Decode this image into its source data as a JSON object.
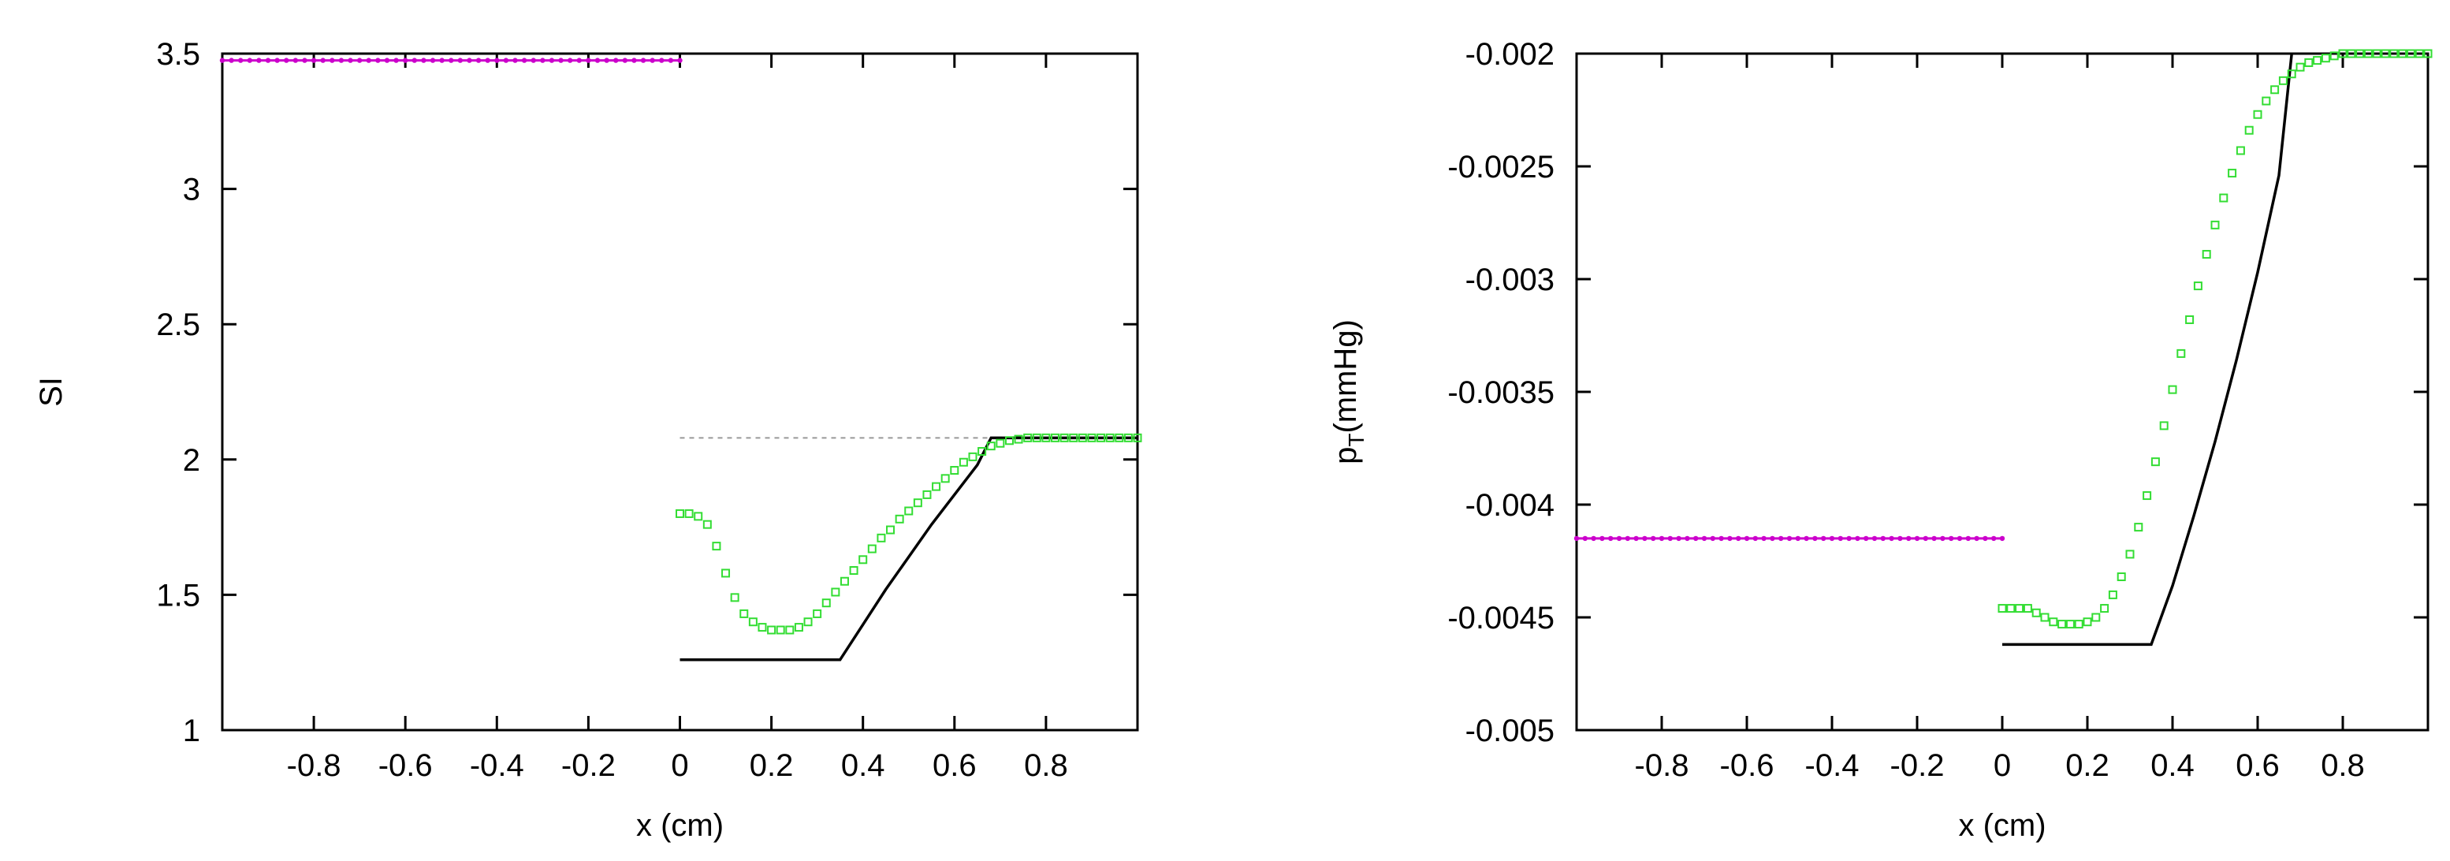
{
  "chart_data": [
    {
      "type": "line",
      "xlabel": "x (cm)",
      "ylabel": "SI",
      "xlim": [
        -1,
        1
      ],
      "ylim": [
        1,
        3.5
      ],
      "grid": false,
      "xticks": [
        -0.8,
        -0.6,
        -0.4,
        -0.2,
        0,
        0.2,
        0.4,
        0.6,
        0.8
      ],
      "xtick_labels": [
        "-0.8",
        "-0.6",
        "-0.4",
        "-0.2",
        "0",
        "0.2",
        "0.4",
        "0.6",
        "0.8"
      ],
      "yticks": [
        1,
        1.5,
        2,
        2.5,
        3,
        3.5
      ],
      "ytick_labels": [
        "1",
        "1.5",
        "2",
        "2.5",
        "3",
        "3.5"
      ],
      "series": [
        {
          "style": "magenta-points",
          "color": "#cc00cc",
          "x_range": [
            -1,
            0
          ],
          "y_constant": 3.475
        },
        {
          "style": "black-line",
          "color": "#000000",
          "x": [
            0,
            0.35,
            0.4,
            0.45,
            0.5,
            0.55,
            0.6,
            0.65,
            0.68,
            1.0
          ],
          "y": [
            1.26,
            1.26,
            1.39,
            1.52,
            1.64,
            1.76,
            1.87,
            1.98,
            2.08,
            2.08
          ]
        },
        {
          "style": "gray-dashed",
          "color": "#999999",
          "x": [
            0,
            0.68
          ],
          "y": [
            2.08,
            2.08
          ]
        },
        {
          "style": "black-dashed",
          "color": "#000000",
          "x": [
            0.68,
            1.0
          ],
          "y": [
            2.08,
            2.08
          ]
        },
        {
          "style": "green-squares",
          "color": "#33dd33",
          "x": [
            0,
            0.02,
            0.04,
            0.06,
            0.08,
            0.1,
            0.12,
            0.14,
            0.16,
            0.18,
            0.2,
            0.22,
            0.24,
            0.26,
            0.28,
            0.3,
            0.32,
            0.34,
            0.36,
            0.38,
            0.4,
            0.42,
            0.44,
            0.46,
            0.48,
            0.5,
            0.52,
            0.54,
            0.56,
            0.58,
            0.6,
            0.62,
            0.64,
            0.66,
            0.68,
            0.7,
            0.72,
            0.74,
            0.76,
            0.78,
            0.8,
            0.82,
            0.84,
            0.86,
            0.88,
            0.9,
            0.92,
            0.94,
            0.96,
            0.98,
            1.0
          ],
          "y": [
            1.8,
            1.8,
            1.79,
            1.76,
            1.68,
            1.58,
            1.49,
            1.43,
            1.4,
            1.38,
            1.37,
            1.37,
            1.37,
            1.38,
            1.4,
            1.43,
            1.47,
            1.51,
            1.55,
            1.59,
            1.63,
            1.67,
            1.71,
            1.74,
            1.78,
            1.81,
            1.84,
            1.87,
            1.9,
            1.93,
            1.96,
            1.99,
            2.01,
            2.03,
            2.05,
            2.06,
            2.07,
            2.075,
            2.08,
            2.08,
            2.08,
            2.08,
            2.08,
            2.08,
            2.08,
            2.08,
            2.08,
            2.08,
            2.08,
            2.08,
            2.08
          ]
        }
      ]
    },
    {
      "type": "line",
      "xlabel": "x (cm)",
      "ylabel": "p",
      "ylabel_subscript": "T",
      "ylabel_suffix": "(mmHg)",
      "xlim": [
        -1,
        1
      ],
      "ylim": [
        -0.005,
        -0.002
      ],
      "grid": false,
      "xticks": [
        -0.8,
        -0.6,
        -0.4,
        -0.2,
        0,
        0.2,
        0.4,
        0.6,
        0.8
      ],
      "xtick_labels": [
        "-0.8",
        "-0.6",
        "-0.4",
        "-0.2",
        "0",
        "0.2",
        "0.4",
        "0.6",
        "0.8"
      ],
      "yticks": [
        -0.005,
        -0.0045,
        -0.004,
        -0.0035,
        -0.003,
        -0.0025,
        -0.002
      ],
      "ytick_labels": [
        "-0.005",
        "-0.0045",
        "-0.004",
        "-0.0035",
        "-0.003",
        "-0.0025",
        "-0.002"
      ],
      "series": [
        {
          "style": "magenta-points",
          "color": "#cc00cc",
          "x_range": [
            -1,
            0
          ],
          "y_constant": -0.00415
        },
        {
          "style": "black-line",
          "color": "#000000",
          "x": [
            0,
            0.35,
            0.4,
            0.45,
            0.5,
            0.55,
            0.6,
            0.65,
            0.68
          ],
          "y": [
            -0.00462,
            -0.00462,
            -0.00436,
            -0.00405,
            -0.00372,
            -0.00336,
            -0.00297,
            -0.00254,
            -0.002
          ]
        },
        {
          "style": "green-squares",
          "color": "#33dd33",
          "x": [
            0,
            0.02,
            0.04,
            0.06,
            0.08,
            0.1,
            0.12,
            0.14,
            0.16,
            0.18,
            0.2,
            0.22,
            0.24,
            0.26,
            0.28,
            0.3,
            0.32,
            0.34,
            0.36,
            0.38,
            0.4,
            0.42,
            0.44,
            0.46,
            0.48,
            0.5,
            0.52,
            0.54,
            0.56,
            0.58,
            0.6,
            0.62,
            0.64,
            0.66,
            0.68,
            0.7,
            0.72,
            0.74,
            0.76,
            0.78,
            0.8,
            0.82,
            0.84,
            0.86,
            0.88,
            0.9,
            0.92,
            0.94,
            0.96,
            0.98,
            1.0
          ],
          "y": [
            -0.00446,
            -0.00446,
            -0.00446,
            -0.00446,
            -0.00448,
            -0.0045,
            -0.00452,
            -0.00453,
            -0.00453,
            -0.00453,
            -0.00452,
            -0.0045,
            -0.00446,
            -0.0044,
            -0.00432,
            -0.00422,
            -0.0041,
            -0.00396,
            -0.00381,
            -0.00365,
            -0.00349,
            -0.00333,
            -0.00318,
            -0.00303,
            -0.00289,
            -0.00276,
            -0.00264,
            -0.00253,
            -0.00243,
            -0.00234,
            -0.00227,
            -0.00221,
            -0.00216,
            -0.00212,
            -0.00209,
            -0.00206,
            -0.00204,
            -0.00203,
            -0.00202,
            -0.00201,
            -0.002,
            -0.002,
            -0.002,
            -0.002,
            -0.002,
            -0.002,
            -0.002,
            -0.002,
            -0.002,
            -0.002,
            -0.002
          ]
        }
      ]
    }
  ]
}
